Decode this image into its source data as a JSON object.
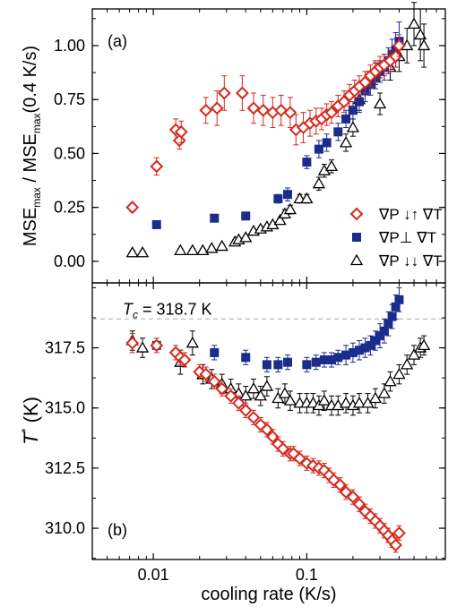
{
  "colors": {
    "par_anti": "#d42a1e",
    "perp": "#1a2c8c",
    "par_same": "#000000",
    "tc_line": "#aaaaaa"
  },
  "chart_data": [
    {
      "type": "scatter",
      "panel_label": "(a)",
      "xscale": "log",
      "xlim": [
        0.004,
        0.8
      ],
      "ylim": [
        -0.1,
        1.17
      ],
      "xlabel": "",
      "ylabel_main": "MSE",
      "ylabel_sub1": "max",
      "ylabel_mid": " / MSE",
      "ylabel_sub2": "max",
      "ylabel_tail": "(0.4 K/s)",
      "yticks": [
        0.0,
        0.25,
        0.5,
        0.75,
        1.0
      ],
      "ytick_labels": [
        "0.00",
        "0.25",
        "0.50",
        "0.75",
        "1.00"
      ],
      "legend": {
        "placement": "lower-right",
        "entries": [
          "∇P ↓↑ ∇T",
          "∇P⊥ ∇T",
          "∇P ↓↓ ∇T"
        ]
      },
      "series": [
        {
          "name": "∇P ↓↑ ∇T",
          "marker": "diamond",
          "color": "#d42a1e",
          "x": [
            0.0073,
            0.0105,
            0.014,
            0.0148,
            0.0152,
            0.022,
            0.026,
            0.029,
            0.038,
            0.045,
            0.052,
            0.06,
            0.068,
            0.078,
            0.085,
            0.095,
            0.105,
            0.115,
            0.125,
            0.135,
            0.145,
            0.16,
            0.175,
            0.19,
            0.205,
            0.22,
            0.24,
            0.26,
            0.28,
            0.3,
            0.32,
            0.35,
            0.38,
            0.4
          ],
          "y": [
            0.25,
            0.44,
            0.61,
            0.56,
            0.6,
            0.7,
            0.71,
            0.78,
            0.78,
            0.71,
            0.7,
            0.69,
            0.7,
            0.69,
            0.61,
            0.62,
            0.64,
            0.65,
            0.66,
            0.68,
            0.69,
            0.72,
            0.74,
            0.77,
            0.79,
            0.81,
            0.83,
            0.86,
            0.88,
            0.9,
            0.91,
            0.93,
            0.95,
            1.0
          ],
          "yerr": [
            0.02,
            0.04,
            0.05,
            0.04,
            0.05,
            0.06,
            0.08,
            0.08,
            0.08,
            0.07,
            0.07,
            0.07,
            0.07,
            0.07,
            0.07,
            0.07,
            0.06,
            0.06,
            0.05,
            0.05,
            0.05,
            0.05,
            0.05,
            0.05,
            0.05,
            0.05,
            0.05,
            0.05,
            0.05,
            0.05,
            0.05,
            0.05,
            0.05,
            0.05
          ]
        },
        {
          "name": "∇P⊥ ∇T",
          "marker": "square",
          "color": "#1a2c8c",
          "x": [
            0.0105,
            0.025,
            0.04,
            0.065,
            0.075,
            0.1,
            0.12,
            0.135,
            0.16,
            0.18,
            0.2,
            0.22,
            0.24,
            0.26,
            0.28,
            0.3,
            0.32,
            0.34,
            0.36,
            0.38,
            0.4
          ],
          "y": [
            0.17,
            0.2,
            0.21,
            0.29,
            0.31,
            0.46,
            0.52,
            0.55,
            0.6,
            0.66,
            0.7,
            0.74,
            0.79,
            0.82,
            0.85,
            0.88,
            0.9,
            0.93,
            0.96,
            0.98,
            1.02
          ],
          "yerr": [
            0.0,
            0.0,
            0.0,
            0.02,
            0.03,
            0.03,
            0.04,
            0.04,
            0.04,
            0.04,
            0.04,
            0.05,
            0.05,
            0.05,
            0.05,
            0.05,
            0.06,
            0.06,
            0.07,
            0.08,
            0.09
          ]
        },
        {
          "name": "∇P ↓↓ ∇T",
          "marker": "triangle",
          "color": "#000000",
          "x": [
            0.0073,
            0.0085,
            0.015,
            0.018,
            0.021,
            0.024,
            0.028,
            0.034,
            0.036,
            0.04,
            0.045,
            0.05,
            0.055,
            0.06,
            0.067,
            0.072,
            0.078,
            0.09,
            0.1,
            0.12,
            0.13,
            0.145,
            0.18,
            0.2,
            0.22,
            0.25,
            0.28,
            0.3,
            0.35,
            0.4,
            0.45,
            0.5,
            0.55,
            0.58
          ],
          "y": [
            0.04,
            0.04,
            0.05,
            0.05,
            0.05,
            0.06,
            0.07,
            0.09,
            0.1,
            0.11,
            0.14,
            0.15,
            0.16,
            0.17,
            0.19,
            0.22,
            0.24,
            0.29,
            0.29,
            0.36,
            0.42,
            0.44,
            0.55,
            0.62,
            0.75,
            0.83,
            0.87,
            0.73,
            0.9,
            0.95,
            1.0,
            1.1,
            1.05,
            1.0
          ],
          "yerr": [
            0.01,
            0.01,
            0.01,
            0.01,
            0.01,
            0.01,
            0.01,
            0.01,
            0.01,
            0.01,
            0.01,
            0.01,
            0.01,
            0.01,
            0.01,
            0.02,
            0.02,
            0.02,
            0.02,
            0.03,
            0.03,
            0.03,
            0.04,
            0.04,
            0.05,
            0.05,
            0.05,
            0.05,
            0.06,
            0.07,
            0.08,
            0.1,
            0.12,
            0.1
          ]
        }
      ]
    },
    {
      "type": "scatter",
      "panel_label": "(b)",
      "xscale": "log",
      "xlim": [
        0.004,
        0.8
      ],
      "ylim": [
        308.7,
        320.2
      ],
      "xlabel": "cooling rate (K/s)",
      "ylabel_main": "T",
      "ylabel_sup": "*",
      "ylabel_tail": " (K)",
      "xticks": [
        0.01,
        0.1
      ],
      "xtick_labels": [
        "0.01",
        "0.1"
      ],
      "yticks": [
        310.0,
        312.5,
        315.0,
        317.5
      ],
      "ytick_labels": [
        "310.0",
        "312.5",
        "315.0",
        "317.5"
      ],
      "tc_line": {
        "y": 318.7,
        "label_main": "T",
        "label_sub": "c",
        "label_tail": " = 318.7 K"
      },
      "series": [
        {
          "name": "∇P ↓↑ ∇T",
          "marker": "diamond",
          "color": "#d42a1e",
          "x": [
            0.0073,
            0.0105,
            0.014,
            0.015,
            0.016,
            0.02,
            0.022,
            0.025,
            0.028,
            0.032,
            0.036,
            0.04,
            0.045,
            0.05,
            0.055,
            0.06,
            0.065,
            0.07,
            0.078,
            0.082,
            0.09,
            0.1,
            0.11,
            0.12,
            0.13,
            0.14,
            0.15,
            0.165,
            0.18,
            0.2,
            0.22,
            0.24,
            0.26,
            0.28,
            0.3,
            0.32,
            0.34,
            0.36,
            0.38,
            0.4
          ],
          "y": [
            317.7,
            317.6,
            317.3,
            317.1,
            317.0,
            316.5,
            316.4,
            316.1,
            315.8,
            315.5,
            315.2,
            314.9,
            314.6,
            314.3,
            314.1,
            313.8,
            313.5,
            313.3,
            313.1,
            313.1,
            312.9,
            312.7,
            312.6,
            312.5,
            312.4,
            312.2,
            312.0,
            311.8,
            311.5,
            311.3,
            311.0,
            310.7,
            310.5,
            310.3,
            310.1,
            309.9,
            309.7,
            309.5,
            309.3,
            309.8
          ],
          "yerr": [
            0.4,
            0.3,
            0.3,
            0.3,
            0.3,
            0.3,
            0.3,
            0.3,
            0.3,
            0.3,
            0.3,
            0.3,
            0.3,
            0.3,
            0.3,
            0.3,
            0.3,
            0.3,
            0.3,
            0.3,
            0.3,
            0.3,
            0.3,
            0.3,
            0.3,
            0.3,
            0.3,
            0.3,
            0.3,
            0.3,
            0.3,
            0.3,
            0.3,
            0.3,
            0.3,
            0.3,
            0.3,
            0.3,
            0.3,
            0.3
          ]
        },
        {
          "name": "∇P⊥ ∇T",
          "marker": "square",
          "color": "#1a2c8c",
          "x": [
            0.0105,
            0.025,
            0.04,
            0.055,
            0.065,
            0.075,
            0.1,
            0.115,
            0.13,
            0.145,
            0.16,
            0.18,
            0.2,
            0.22,
            0.24,
            0.26,
            0.28,
            0.3,
            0.32,
            0.34,
            0.36,
            0.38,
            0.4
          ],
          "y": [
            317.6,
            317.3,
            317.1,
            316.8,
            316.8,
            316.9,
            316.8,
            316.9,
            317.0,
            317.0,
            317.1,
            317.2,
            317.3,
            317.4,
            317.5,
            317.6,
            317.8,
            318.0,
            318.2,
            318.5,
            318.8,
            319.2,
            319.5
          ],
          "yerr": [
            0.0,
            0.3,
            0.3,
            0.3,
            0.3,
            0.3,
            0.3,
            0.3,
            0.3,
            0.3,
            0.3,
            0.4,
            0.4,
            0.4,
            0.4,
            0.4,
            0.4,
            0.5,
            0.5,
            0.5,
            0.5,
            0.5,
            0.5
          ]
        },
        {
          "name": "∇P ↓↓ ∇T",
          "marker": "triangle",
          "color": "#000000",
          "x": [
            0.0073,
            0.0085,
            0.015,
            0.018,
            0.021,
            0.024,
            0.028,
            0.032,
            0.036,
            0.04,
            0.045,
            0.05,
            0.055,
            0.065,
            0.072,
            0.078,
            0.09,
            0.1,
            0.11,
            0.12,
            0.13,
            0.145,
            0.16,
            0.18,
            0.2,
            0.22,
            0.25,
            0.28,
            0.32,
            0.35,
            0.4,
            0.45,
            0.5,
            0.55,
            0.58
          ],
          "y": [
            317.8,
            317.5,
            316.9,
            317.7,
            316.4,
            316.2,
            316.0,
            315.8,
            315.6,
            315.5,
            315.8,
            315.5,
            315.9,
            315.4,
            315.6,
            315.3,
            315.2,
            315.2,
            315.2,
            315.1,
            315.3,
            315.1,
            315.1,
            315.2,
            315.1,
            315.2,
            315.2,
            315.4,
            315.6,
            316.1,
            316.4,
            316.8,
            317.2,
            317.5,
            317.6
          ],
          "yerr": [
            0.4,
            0.4,
            0.5,
            0.5,
            0.4,
            0.4,
            0.4,
            0.4,
            0.4,
            0.4,
            0.4,
            0.4,
            0.4,
            0.4,
            0.4,
            0.4,
            0.4,
            0.4,
            0.4,
            0.4,
            0.4,
            0.4,
            0.4,
            0.4,
            0.4,
            0.4,
            0.4,
            0.4,
            0.4,
            0.4,
            0.4,
            0.4,
            0.4,
            0.4,
            0.4
          ]
        }
      ]
    }
  ]
}
